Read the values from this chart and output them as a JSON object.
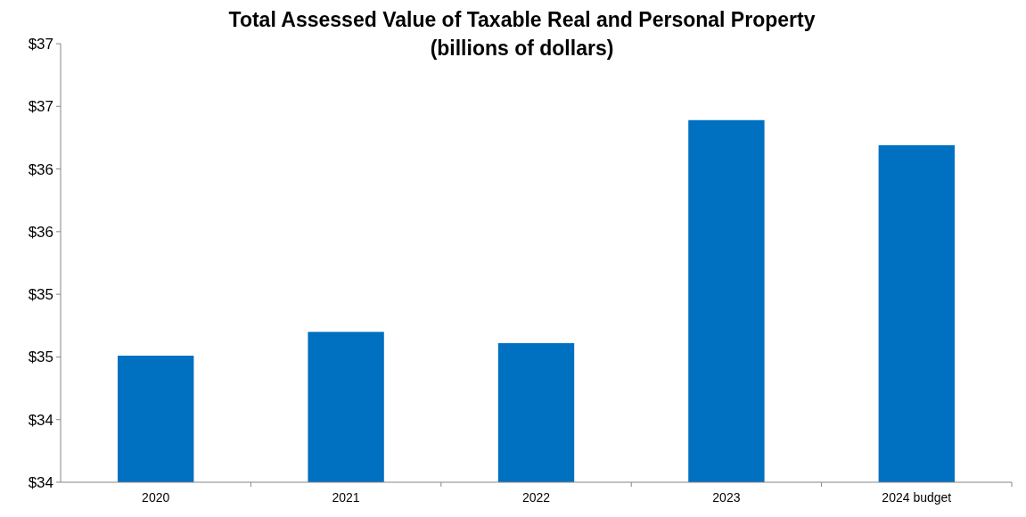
{
  "chart_data": {
    "type": "bar",
    "title": "Total Assessed Value of Taxable Real and Personal Property\n(billions of dollars)",
    "categories": [
      "2020",
      "2021",
      "2022",
      "2023",
      "2024 budget"
    ],
    "values": [
      34.81,
      35.0,
      34.91,
      36.69,
      36.49
    ],
    "color": "#0070c0",
    "ylim": [
      33.8,
      37.3
    ],
    "yticks": [
      {
        "value": 33.8,
        "label": "$34"
      },
      {
        "value": 34.3,
        "label": "$34"
      },
      {
        "value": 34.8,
        "label": "$35"
      },
      {
        "value": 35.3,
        "label": "$35"
      },
      {
        "value": 35.8,
        "label": "$36"
      },
      {
        "value": 36.3,
        "label": "$36"
      },
      {
        "value": 36.8,
        "label": "$37"
      },
      {
        "value": 37.3,
        "label": "$37"
      }
    ],
    "grid": false
  }
}
